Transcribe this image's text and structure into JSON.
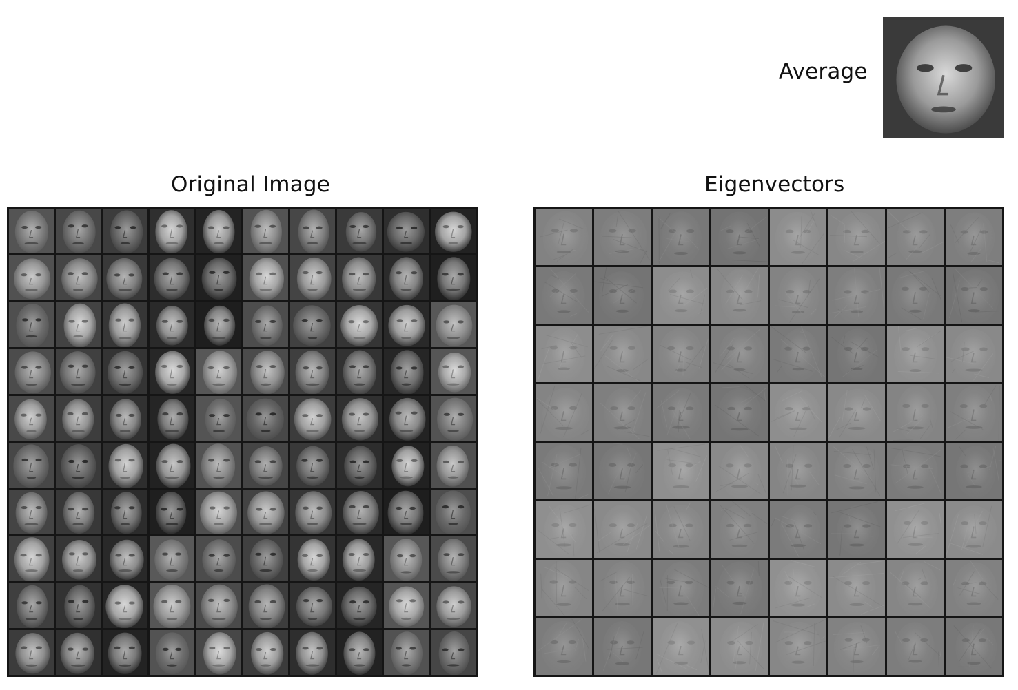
{
  "labels": {
    "average": "Average",
    "original_title": "Original Image",
    "eigen_title": "Eigenvectors"
  },
  "grids": {
    "original": {
      "rows": 10,
      "cols": 10
    },
    "eigenvectors": {
      "rows": 8,
      "cols": 8
    }
  },
  "colors": {
    "background": "#ffffff",
    "grid_border": "#151515",
    "eigen_base": "#8a8a8a",
    "face_dark": "#2b2b2b",
    "face_light": "#d8d8d8"
  }
}
